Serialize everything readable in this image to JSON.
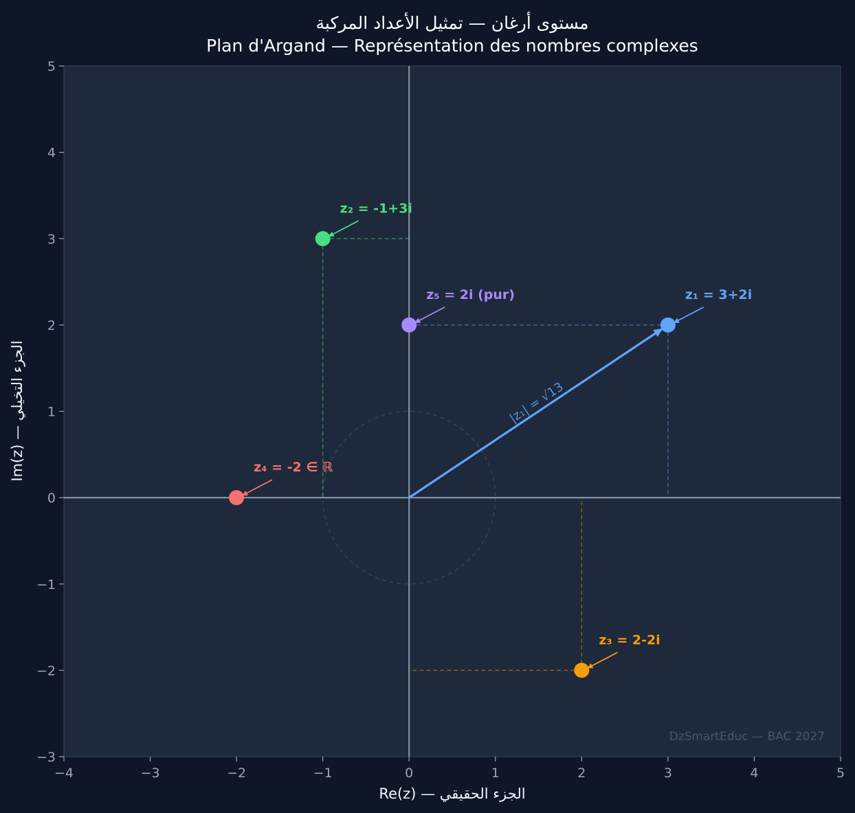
{
  "chart_data": {
    "type": "scatter",
    "title": "مستوى أرغان — تمثيل الأعداد المركبة",
    "subtitle": "Plan d'Argand — Représentation des nombres complexes",
    "xlabel": "Re(z) — الجزء الحقيقي",
    "ylabel": "Im(z) — الجزء التخيلي",
    "xlim": [
      -4,
      5
    ],
    "ylim": [
      -3,
      5
    ],
    "xticks": [
      "−4",
      "−3",
      "−2",
      "−1",
      "0",
      "1",
      "2",
      "3",
      "4",
      "5"
    ],
    "yticks": [
      "−3",
      "−2",
      "−1",
      "0",
      "1",
      "2",
      "3",
      "4",
      "5"
    ],
    "grid": false,
    "unit_circle_radius": 1,
    "points": [
      {
        "label": "z₁ = 3+2i",
        "x": 3,
        "y": 2,
        "color": "#60a5fa"
      },
      {
        "label": "z₂ = -1+3i",
        "x": -1,
        "y": 3,
        "color": "#4ade80"
      },
      {
        "label": "z₃ = 2-2i",
        "x": 2,
        "y": -2,
        "color": "#f59e0b"
      },
      {
        "label": "z₄ = -2 ∈ ℝ",
        "x": -2,
        "y": 0,
        "color": "#f87171"
      },
      {
        "label": "z₅ = 2i (pur)",
        "x": 0,
        "y": 2,
        "color": "#a78bfa"
      }
    ],
    "vector": {
      "from": [
        0,
        0
      ],
      "to": [
        3,
        2
      ],
      "label": "|z₁| = √13",
      "color": "#60a5fa"
    },
    "watermark": "DzSmartEduc — BAC 2027"
  }
}
